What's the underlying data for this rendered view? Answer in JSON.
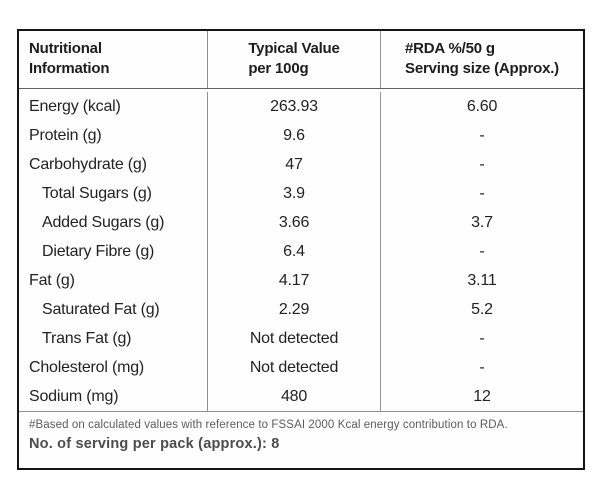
{
  "label": {
    "header": {
      "columns": [
        {
          "line1": "Nutritional",
          "line2": "Information"
        },
        {
          "line1": "Typical Value",
          "line2": "per 100g"
        },
        {
          "line1": "#RDA %/50 g",
          "line2": "Serving size (Approx.)"
        }
      ]
    },
    "rows": [
      {
        "label": "Energy (kcal)",
        "value": "263.93",
        "rda": "6.60",
        "indent": false
      },
      {
        "label": "Protein (g)",
        "value": "9.6",
        "rda": "-",
        "indent": false
      },
      {
        "label": "Carbohydrate (g)",
        "value": "47",
        "rda": "-",
        "indent": false
      },
      {
        "label": "Total Sugars (g)",
        "value": "3.9",
        "rda": "-",
        "indent": true
      },
      {
        "label": "Added Sugars (g)",
        "value": "3.66",
        "rda": "3.7",
        "indent": true
      },
      {
        "label": "Dietary Fibre (g)",
        "value": "6.4",
        "rda": "-",
        "indent": true
      },
      {
        "label": "Fat (g)",
        "value": "4.17",
        "rda": "3.11",
        "indent": false
      },
      {
        "label": "Saturated Fat (g)",
        "value": "2.29",
        "rda": "5.2",
        "indent": true
      },
      {
        "label": "Trans Fat (g)",
        "value": "Not detected",
        "rda": "-",
        "indent": true
      },
      {
        "label": "Cholesterol (mg)",
        "value": "Not detected",
        "rda": "-",
        "indent": false
      },
      {
        "label": "Sodium (mg)",
        "value": "480",
        "rda": "12",
        "indent": false
      }
    ],
    "footer": {
      "note": "#Based on calculated values with reference to FSSAI 2000 Kcal energy contribution to RDA.",
      "servings": "No. of serving per pack (approx.): 8"
    },
    "colors": {
      "outer_border": "#151515",
      "separator": "#8f8f8f",
      "text": "#222222",
      "note_text": "#5c5c5c"
    }
  }
}
